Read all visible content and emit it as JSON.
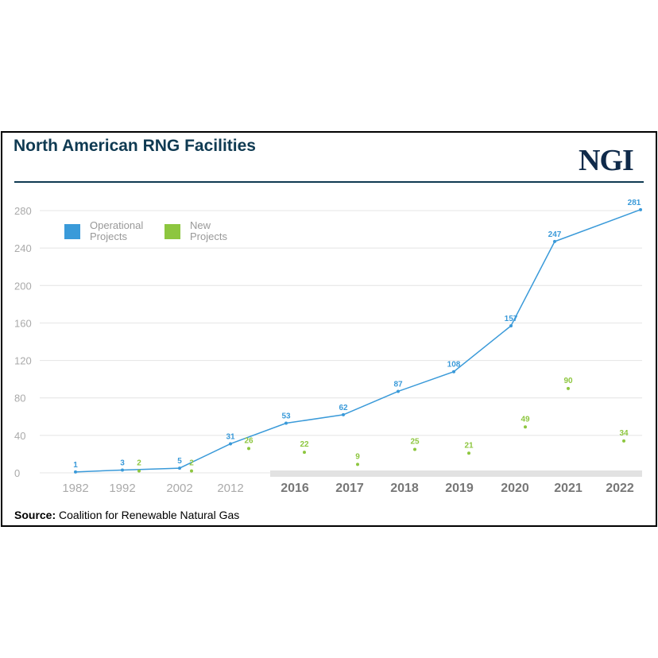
{
  "title": "North American RNG Facilities",
  "logo": "NGI",
  "source": {
    "label": "Source:",
    "text": " Coalition for Renewable Natural Gas"
  },
  "chart_data": {
    "type": "line",
    "categories": [
      "1982",
      "1992",
      "2002",
      "2012",
      "2016",
      "2017",
      "2018",
      "2019",
      "2020",
      "2021",
      "2022"
    ],
    "ylim": [
      0,
      280
    ],
    "yticks": [
      0,
      40,
      80,
      120,
      160,
      200,
      240,
      280
    ],
    "grid": true,
    "legend_position": "top-left",
    "series": [
      {
        "name": "Operational Projects",
        "color": "#3a9ad9",
        "style": "line",
        "values": [
          1,
          3,
          5,
          31,
          53,
          62,
          87,
          108,
          157,
          247,
          281
        ]
      },
      {
        "name": "New Projects",
        "color": "#8dc63f",
        "style": "points",
        "values": [
          null,
          2,
          2,
          26,
          22,
          9,
          25,
          21,
          49,
          90,
          34
        ]
      }
    ]
  }
}
